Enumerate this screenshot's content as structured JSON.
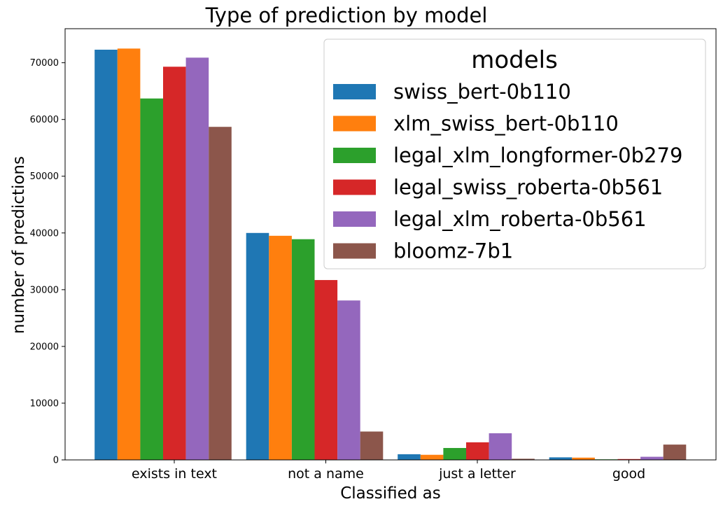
{
  "chart_data": {
    "type": "bar",
    "title": "Type of prediction by model",
    "xlabel": "Classified as",
    "ylabel": "number of predictions",
    "categories": [
      "exists in text",
      "not a name",
      "just a letter",
      "good"
    ],
    "ylim": [
      0,
      76000
    ],
    "yticks": [
      0,
      10000,
      20000,
      30000,
      40000,
      50000,
      60000,
      70000
    ],
    "grid": false,
    "legend": {
      "title": "models",
      "placement": "upper-right"
    },
    "series": [
      {
        "name": "swiss_bert-0b110",
        "color": "#1f77b4",
        "values": [
          72300,
          40000,
          1000,
          450
        ]
      },
      {
        "name": "xlm_swiss_bert-0b110",
        "color": "#ff7f0e",
        "values": [
          72500,
          39500,
          900,
          400
        ]
      },
      {
        "name": "legal_xlm_longformer-0b279",
        "color": "#2ca02c",
        "values": [
          63700,
          38900,
          2100,
          100
        ]
      },
      {
        "name": "legal_swiss_roberta-0b561",
        "color": "#d62728",
        "values": [
          69300,
          31700,
          3100,
          150
        ]
      },
      {
        "name": "legal_xlm_roberta-0b561",
        "color": "#9467bd",
        "values": [
          70900,
          28100,
          4700,
          550
        ]
      },
      {
        "name": "bloomz-7b1",
        "color": "#8c564b",
        "values": [
          58700,
          5000,
          200,
          2700
        ]
      }
    ]
  }
}
